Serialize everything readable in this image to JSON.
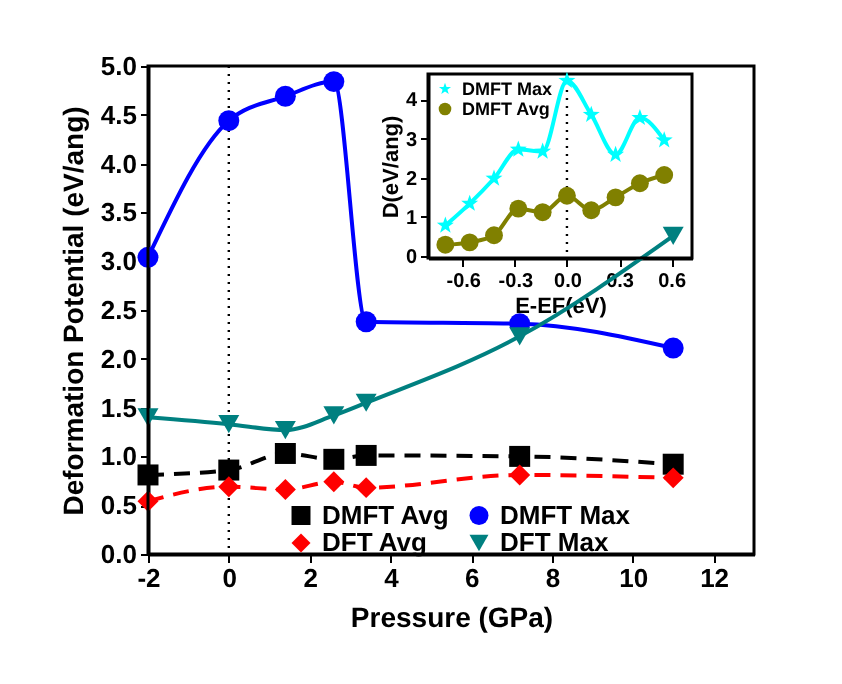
{
  "chart_data": [
    {
      "type": "line",
      "xlabel": "Pressure (GPa)",
      "ylabel": "Deformation Potential (eV/ang)",
      "xlim": [
        -2,
        13
      ],
      "xticks": [
        -2,
        0,
        2,
        4,
        6,
        8,
        10,
        12
      ],
      "ylim": [
        0,
        5
      ],
      "yticks": [
        {
          "value": 0,
          "label": "0.0"
        },
        0.5,
        {
          "value": 1,
          "label": "1.0"
        },
        1.5,
        {
          "value": 2,
          "label": "2.0"
        },
        2.5,
        {
          "value": 3,
          "label": "3.0"
        },
        3.5,
        {
          "value": 4,
          "label": "4.0"
        },
        4.5,
        {
          "value": 5,
          "label": "5.0"
        }
      ],
      "grid": false,
      "legend": "bottom",
      "ref_lines": [
        {
          "axis": "x",
          "value": 0,
          "line_style": "dotted",
          "color": "#000000"
        }
      ],
      "series": [
        {
          "name": "DMFT Avg",
          "color": "#000000",
          "marker": "square",
          "line_style": "dashed",
          "x": [
            -2,
            0,
            1.4,
            2.6,
            3.4,
            7.2,
            11
          ],
          "values": [
            0.81,
            0.86,
            1.03,
            0.97,
            1.01,
            1.0,
            0.92
          ]
        },
        {
          "name": "DFT Avg",
          "color": "#ff0000",
          "marker": "diamond",
          "line_style": "dashed",
          "x": [
            -2,
            0,
            1.4,
            2.6,
            3.4,
            7.2,
            11
          ],
          "values": [
            0.54,
            0.69,
            0.66,
            0.74,
            0.68,
            0.81,
            0.78
          ]
        },
        {
          "name": "DMFT Max",
          "color": "#0000ff",
          "marker": "circle",
          "line_style": "solid",
          "x": [
            -2,
            0,
            1.4,
            2.6,
            3.4,
            7.2,
            11
          ],
          "values": [
            3.04,
            4.44,
            4.69,
            4.84,
            2.38,
            2.36,
            2.11
          ]
        },
        {
          "name": "DFT Max",
          "color": "#008080",
          "marker": "triangle",
          "line_style": "solid",
          "x": [
            -2,
            0,
            1.4,
            2.6,
            3.4,
            7.2,
            11
          ],
          "values": [
            1.4,
            1.33,
            1.27,
            1.42,
            1.55,
            2.23,
            3.26
          ]
        }
      ]
    },
    {
      "type": "line",
      "xlabel": "E-EF(eV)",
      "ylabel": "D(eV/ang)",
      "xlim": [
        -0.8,
        0.72
      ],
      "xticks": [
        -0.6,
        -0.3,
        {
          "value": 0,
          "label": "0.0"
        },
        0.3,
        0.6
      ],
      "ylim": [
        -0.05,
        4.65
      ],
      "yticks": [
        0,
        1,
        2,
        3,
        4
      ],
      "grid": false,
      "legend": "top left",
      "ref_lines": [
        {
          "axis": "x",
          "value": 0,
          "line_style": "dotted",
          "color": "#000000"
        }
      ],
      "series": [
        {
          "name": "DMFT Max",
          "color": "#00ffff",
          "marker": "star",
          "line_style": "solid",
          "x": [
            -0.7,
            -0.56,
            -0.42,
            -0.28,
            -0.14,
            0,
            0.14,
            0.28,
            0.42,
            0.56
          ],
          "values": [
            0.78,
            1.34,
            1.98,
            2.72,
            2.67,
            4.48,
            3.61,
            2.59,
            3.53,
            2.96
          ]
        },
        {
          "name": "DMFT Avg",
          "color": "#808000",
          "marker": "circle",
          "line_style": "solid",
          "x": [
            -0.7,
            -0.56,
            -0.42,
            -0.28,
            -0.14,
            0,
            0.14,
            0.28,
            0.42,
            0.56
          ],
          "values": [
            0.29,
            0.35,
            0.53,
            1.21,
            1.12,
            1.54,
            1.17,
            1.5,
            1.86,
            2.07
          ]
        }
      ]
    }
  ]
}
